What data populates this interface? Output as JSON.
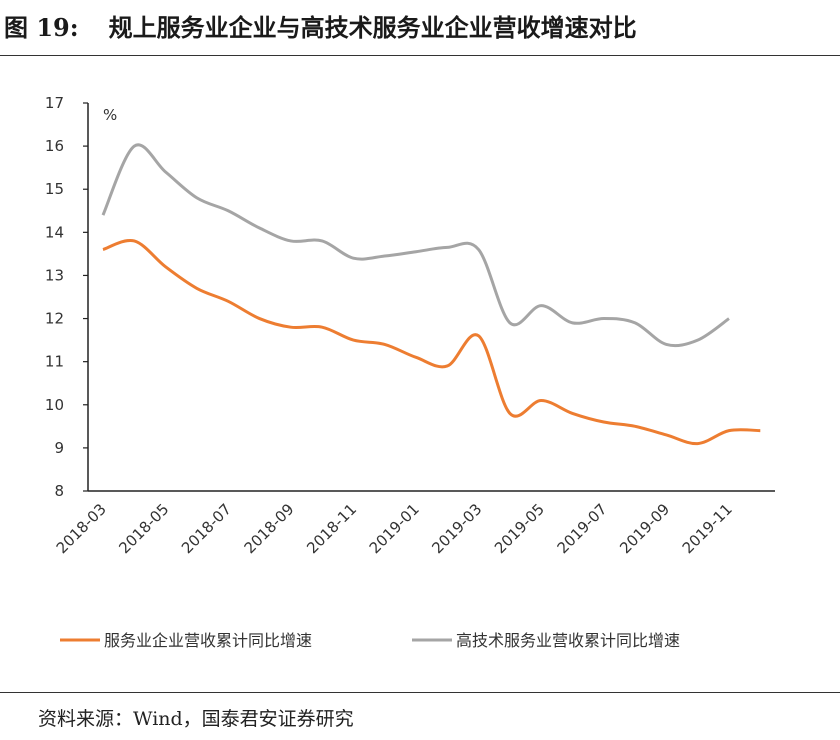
{
  "title": {
    "number": "图 19:",
    "text": "规上服务业企业与高技术服务业企业营收增速对比"
  },
  "source": "资料来源：Wind，国泰君安证券研究",
  "chart_data": {
    "type": "line",
    "title": "",
    "ylabel": "%",
    "xlabel": "",
    "ylim": [
      8,
      17
    ],
    "yticks": [
      8,
      9,
      10,
      11,
      12,
      13,
      14,
      15,
      16,
      17
    ],
    "grid": false,
    "legend": "bottom",
    "x": [
      "2018-03",
      "2018-04",
      "2018-05",
      "2018-06",
      "2018-07",
      "2018-08",
      "2018-09",
      "2018-10",
      "2018-11",
      "2018-12",
      "2019-01",
      "2019-02",
      "2019-03",
      "2019-04",
      "2019-05",
      "2019-06",
      "2019-07",
      "2019-08",
      "2019-09",
      "2019-10",
      "2019-11",
      "2019-12"
    ],
    "xtick_labels": [
      "2018-03",
      "2018-05",
      "2018-07",
      "2018-09",
      "2018-11",
      "2019-01",
      "2019-03",
      "2019-05",
      "2019-07",
      "2019-09",
      "2019-11"
    ],
    "series": [
      {
        "name": "服务业企业营收累计同比增速",
        "color": "#ED7D31",
        "values": [
          13.6,
          13.8,
          13.2,
          12.7,
          12.4,
          12.0,
          11.8,
          11.8,
          11.5,
          11.4,
          11.1,
          10.9,
          11.6,
          9.8,
          10.1,
          9.8,
          9.6,
          9.5,
          9.3,
          9.1,
          9.4,
          9.4
        ]
      },
      {
        "name": "高技术服务业营收累计同比增速",
        "color": "#A5A5A5",
        "values": [
          14.4,
          16.0,
          15.4,
          14.8,
          14.5,
          14.1,
          13.8,
          13.8,
          13.4,
          13.45,
          13.55,
          13.65,
          13.6,
          11.9,
          12.3,
          11.9,
          12.0,
          11.9,
          11.4,
          11.5,
          12.0,
          null
        ]
      }
    ]
  }
}
